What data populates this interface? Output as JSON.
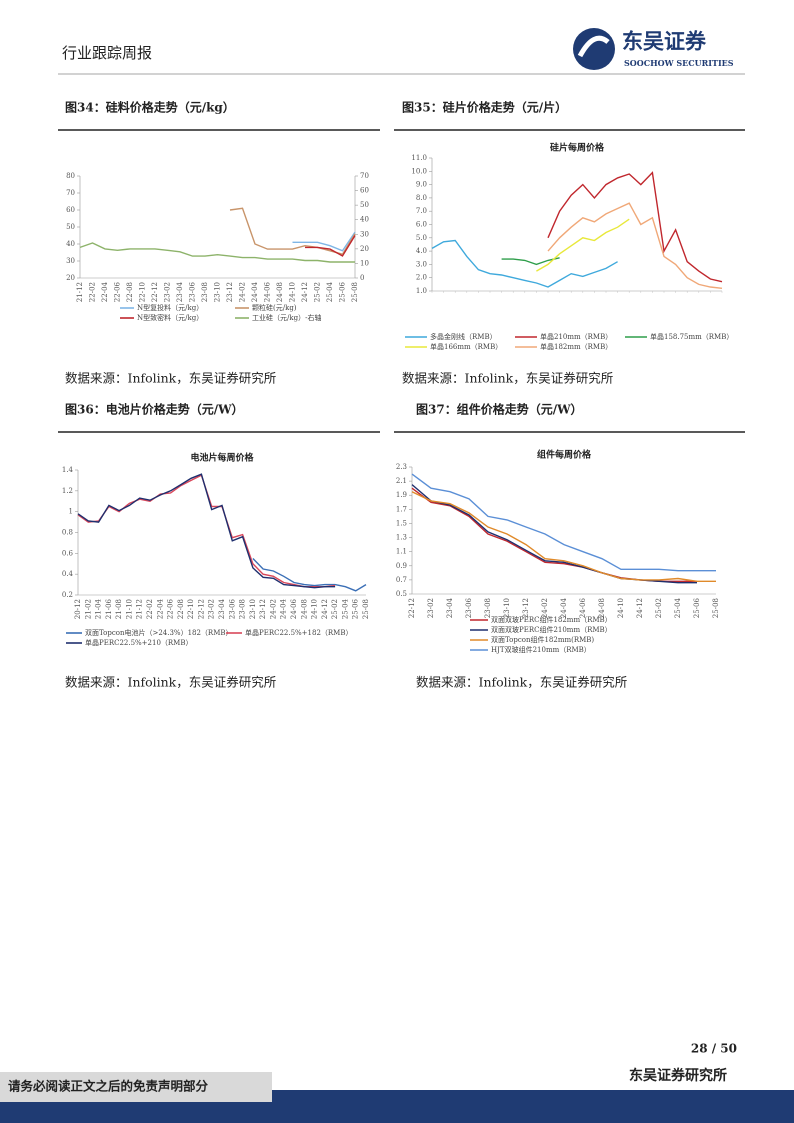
{
  "header": {
    "title": "行业跟踪周报"
  },
  "logo": {
    "name": "东吴证券",
    "sub": "SOOCHOW SECURITIES"
  },
  "figures": [
    {
      "caption": "图34：硅料价格走势（元/kg）",
      "source": "数据来源：Infolink，东吴证券研究所"
    },
    {
      "caption": "图35：硅片价格走势（元/片）",
      "source": "数据来源：Infolink，东吴证券研究所"
    },
    {
      "caption": "图36：电池片价格走势（元/W）",
      "source": "数据来源：Infolink，东吴证券研究所"
    },
    {
      "caption": "图37：组件价格走势（元/W）",
      "source": "数据来源：Infolink，东吴证券研究所"
    }
  ],
  "chart_data": [
    {
      "type": "line",
      "categories": [
        "21-12",
        "22-02",
        "22-04",
        "22-06",
        "22-08",
        "22-10",
        "22-12",
        "23-02",
        "23-04",
        "23-06",
        "23-08",
        "23-10",
        "23-12",
        "24-02",
        "24-04",
        "24-06",
        "24-08",
        "24-10",
        "24-12",
        "25-02",
        "25-04",
        "25-06",
        "25-08"
      ],
      "ylim": [
        20,
        80
      ],
      "yticks": [
        20,
        30,
        40,
        50,
        60,
        70,
        80
      ],
      "y2lim": [
        0,
        70
      ],
      "y2ticks": [
        0,
        10,
        20,
        30,
        40,
        50,
        60,
        70
      ],
      "series": [
        {
          "name": "N型复投料（元/kg）",
          "color": "#7fb6e6",
          "values": [
            null,
            null,
            null,
            null,
            null,
            null,
            null,
            null,
            null,
            null,
            null,
            null,
            null,
            null,
            null,
            null,
            null,
            41,
            41,
            41,
            39,
            36,
            47
          ]
        },
        {
          "name": "颗粒硅(元/kg)",
          "color": "#c8946a",
          "values": [
            null,
            null,
            null,
            null,
            null,
            null,
            null,
            null,
            null,
            null,
            null,
            null,
            60,
            61,
            40,
            37,
            37,
            37,
            39,
            38,
            36,
            34,
            46
          ]
        },
        {
          "name": "N型致密料（元/kg）",
          "color": "#c0272d",
          "values": [
            null,
            null,
            null,
            null,
            null,
            null,
            null,
            null,
            null,
            null,
            null,
            null,
            null,
            null,
            null,
            null,
            null,
            null,
            38,
            38,
            37,
            33,
            45
          ]
        },
        {
          "name": "工业硅（元/kg）-右轴",
          "color": "#8db36a",
          "axis": "y2",
          "values": [
            21,
            24,
            20,
            19,
            20,
            20,
            20,
            19,
            18,
            15,
            15,
            16,
            15,
            14,
            14,
            13,
            13,
            13,
            12,
            12,
            11,
            11,
            11
          ]
        }
      ]
    },
    {
      "type": "line",
      "title": "硅片每周价格",
      "categories": [
        null,
        null,
        null,
        null,
        null,
        null,
        null,
        null,
        null,
        null,
        null,
        null,
        null,
        null,
        null,
        null,
        null,
        null,
        null,
        null,
        null,
        null,
        null,
        null,
        null,
        null
      ],
      "ylim": [
        1,
        11
      ],
      "yticks": [
        {
          "value": 1,
          "label": "1.0"
        },
        {
          "value": 2,
          "label": "2.0"
        },
        {
          "value": 3,
          "label": "3.0"
        },
        {
          "value": 4,
          "label": "4.0"
        },
        {
          "value": 5,
          "label": "5.0"
        },
        {
          "value": 6,
          "label": "6.0"
        },
        {
          "value": 7,
          "label": "7.0"
        },
        {
          "value": 8,
          "label": "8.0"
        },
        {
          "value": 9,
          "label": "9.0"
        },
        {
          "value": 10,
          "label": "10.0"
        },
        {
          "value": 11,
          "label": "11.0"
        }
      ],
      "series": [
        {
          "name": "多晶金刚线（RMB）",
          "color": "#3fa9dc",
          "values": [
            4.2,
            4.7,
            4.8,
            3.6,
            2.6,
            2.3,
            2.2,
            2.0,
            1.8,
            1.6,
            1.3,
            1.8,
            2.3,
            2.1,
            2.4,
            2.7,
            3.2,
            null,
            null,
            null,
            null,
            null,
            null,
            null,
            null,
            null
          ]
        },
        {
          "name": "单晶210mm（RMB）",
          "color": "#c0272d",
          "values": [
            null,
            null,
            null,
            null,
            null,
            null,
            null,
            null,
            null,
            null,
            5.0,
            7.0,
            8.2,
            9.0,
            8.0,
            9.0,
            9.5,
            9.8,
            9.0,
            9.9,
            4.0,
            5.6,
            3.2,
            2.5,
            1.9,
            1.7
          ]
        },
        {
          "name": "单晶158.75mm（RMB）",
          "color": "#2e9e4a",
          "values": [
            null,
            null,
            null,
            null,
            null,
            null,
            3.4,
            3.4,
            3.3,
            3.0,
            3.3,
            3.5,
            null,
            null,
            null,
            null,
            null,
            null,
            null,
            null,
            null,
            null,
            null,
            null,
            null,
            null
          ]
        },
        {
          "name": "单晶166mm（RMB）",
          "color": "#e8e83a",
          "values": [
            null,
            null,
            null,
            null,
            null,
            null,
            null,
            null,
            null,
            2.5,
            3.0,
            3.8,
            4.4,
            5.0,
            4.8,
            5.4,
            5.8,
            6.4,
            null,
            null,
            null,
            null,
            null,
            null,
            null,
            null
          ]
        },
        {
          "name": "单晶182mm（RMB）",
          "color": "#f0a878",
          "values": [
            null,
            null,
            null,
            null,
            null,
            null,
            null,
            null,
            null,
            null,
            4.0,
            5.0,
            5.8,
            6.5,
            6.2,
            6.8,
            7.2,
            7.6,
            6.0,
            6.5,
            3.6,
            3.0,
            2.0,
            1.5,
            1.3,
            1.2
          ]
        }
      ]
    },
    {
      "type": "line",
      "title": "电池片每周价格",
      "categories": [
        "20-12",
        "21-02",
        "21-04",
        "21-06",
        "21-08",
        "21-10",
        "21-12",
        "22-02",
        "22-04",
        "22-06",
        "22-08",
        "22-10",
        "22-12",
        "23-02",
        "23-04",
        "23-06",
        "23-08",
        "23-10",
        "23-12",
        "24-02",
        "24-04",
        "24-06",
        "24-08",
        "24-10",
        "24-12",
        "25-02",
        "25-04",
        "25-06",
        "25-08"
      ],
      "ylim": [
        0.2,
        1.4
      ],
      "yticks": [
        0.2,
        0.4,
        0.6,
        0.8,
        1,
        1.2,
        1.4
      ],
      "series": [
        {
          "name": "双面Topcon电池片（>24.3%）182（RMB）",
          "color": "#3b6fb6",
          "values": [
            null,
            null,
            null,
            null,
            null,
            null,
            null,
            null,
            null,
            null,
            null,
            null,
            null,
            null,
            null,
            null,
            null,
            0.55,
            0.45,
            0.43,
            0.38,
            0.32,
            0.3,
            0.29,
            0.3,
            0.3,
            0.28,
            0.24,
            0.3
          ]
        },
        {
          "name": "单晶PERC22.5%+182（RMB）",
          "color": "#d9475a",
          "values": [
            0.97,
            0.9,
            0.91,
            1.05,
            1.0,
            1.08,
            1.12,
            1.1,
            1.17,
            1.18,
            1.25,
            1.3,
            1.35,
            1.05,
            1.05,
            0.75,
            0.78,
            0.5,
            0.4,
            0.38,
            0.32,
            0.3,
            0.28,
            0.28,
            0.28,
            0.29,
            null,
            null,
            null
          ]
        },
        {
          "name": "单晶PERC22.5%+210（RMB）",
          "color": "#1f2f6e",
          "values": [
            0.98,
            0.91,
            0.9,
            1.06,
            1.01,
            1.06,
            1.13,
            1.11,
            1.16,
            1.2,
            1.26,
            1.32,
            1.36,
            1.02,
            1.06,
            0.72,
            0.76,
            0.46,
            0.37,
            0.36,
            0.3,
            0.29,
            0.28,
            0.27,
            0.28,
            0.28,
            null,
            null,
            null
          ]
        }
      ]
    },
    {
      "type": "line",
      "title": "组件每周价格",
      "categories": [
        "22-12",
        "23-02",
        "23-04",
        "23-06",
        "23-08",
        "23-10",
        "23-12",
        "24-02",
        "24-04",
        "24-06",
        "24-08",
        "24-10",
        "24-12",
        "25-02",
        "25-04",
        "25-06",
        "25-08"
      ],
      "ylim": [
        0.5,
        2.3
      ],
      "yticks": [
        0.5,
        0.7,
        0.9,
        1.1,
        1.3,
        1.5,
        1.7,
        1.9,
        2.1,
        2.3
      ],
      "series": [
        {
          "name": "双面双玻PERC组件182mm（RMB）",
          "color": "#c0272d",
          "values": [
            2.0,
            1.8,
            1.75,
            1.6,
            1.35,
            1.25,
            1.1,
            0.95,
            0.93,
            0.88,
            0.8,
            0.73,
            0.7,
            0.68,
            0.68,
            0.68,
            null
          ]
        },
        {
          "name": "双面双玻PERC组件210mm（RMB）",
          "color": "#1f2f6e",
          "values": [
            2.05,
            1.82,
            1.76,
            1.62,
            1.38,
            1.27,
            1.12,
            0.97,
            0.95,
            0.88,
            0.8,
            0.72,
            0.7,
            0.68,
            0.66,
            0.66,
            null
          ]
        },
        {
          "name": "双面Topcon组件182mm(RMB)",
          "color": "#e08a2a",
          "values": [
            1.95,
            1.82,
            1.78,
            1.65,
            1.45,
            1.35,
            1.2,
            1.0,
            0.97,
            0.9,
            0.8,
            0.72,
            0.7,
            0.7,
            0.72,
            0.68,
            0.68
          ]
        },
        {
          "name": "HJT双玻组件210mm（RMB）",
          "color": "#5b8fd6",
          "values": [
            2.2,
            2.0,
            1.95,
            1.85,
            1.6,
            1.55,
            1.45,
            1.35,
            1.2,
            1.1,
            1.0,
            0.85,
            0.85,
            0.85,
            0.83,
            0.83,
            0.83
          ]
        }
      ]
    }
  ],
  "footer": {
    "page": "28 / 50",
    "org": "东吴证券研究所",
    "disclaimer": "请务必阅读正文之后的免责声明部分"
  }
}
